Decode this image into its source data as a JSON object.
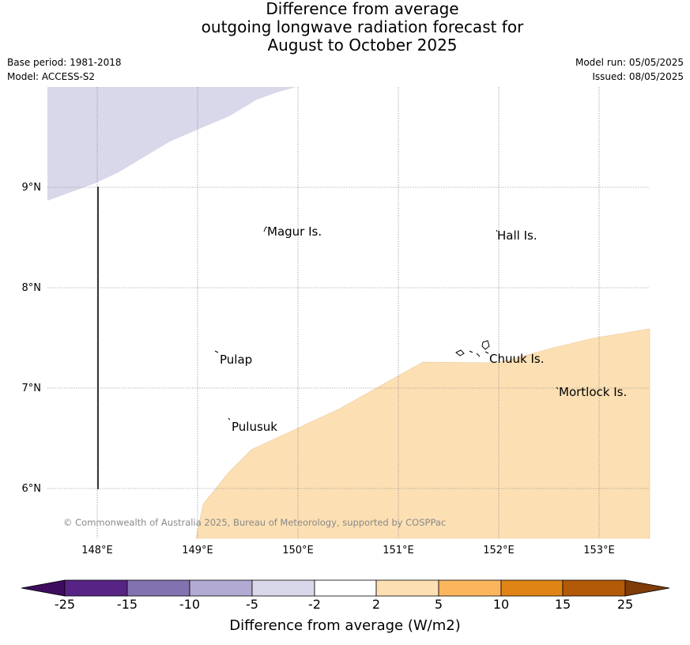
{
  "title": {
    "line1": "Difference from average",
    "line2": "outgoing longwave radiation forecast for",
    "line3": "August to October 2025"
  },
  "meta": {
    "base_period": "Base period: 1981-2018",
    "model": "Model: ACCESS-S2",
    "model_run": "Model run: 05/05/2025",
    "issued": "Issued: 08/05/2025"
  },
  "map": {
    "lon_range": [
      147.5,
      153.5
    ],
    "lat_range": [
      5.5,
      10.0
    ],
    "lon_ticks": [
      "148°E",
      "149°E",
      "150°E",
      "151°E",
      "152°E",
      "153°E"
    ],
    "lat_ticks": [
      "9°N",
      "8°N",
      "7°N",
      "6°N"
    ],
    "places": [
      "Magur Is.",
      "Hall Is.",
      "Pulap",
      "Chuuk Is.",
      "Mortlock Is.",
      "Pulusuk"
    ],
    "copyright": "© Commonwealth of Australia 2025, Bureau of Meteorology, supported by COSPPac",
    "negative_fill_color": "#d8d8ea",
    "positive_fill_color": "#fce0b4"
  },
  "colorbar": {
    "labels": [
      "-25",
      "-15",
      "-10",
      "-5",
      "-2",
      "2",
      "5",
      "10",
      "15",
      "25"
    ],
    "colors": [
      "#3d0c5e",
      "#572486",
      "#8272b0",
      "#b2aad3",
      "#d8d8ea",
      "#ffffff",
      "#fce0b4",
      "#fbb65d",
      "#e08416",
      "#b35a08",
      "#7f3b08"
    ],
    "title": "Difference from average (W/m2)"
  }
}
